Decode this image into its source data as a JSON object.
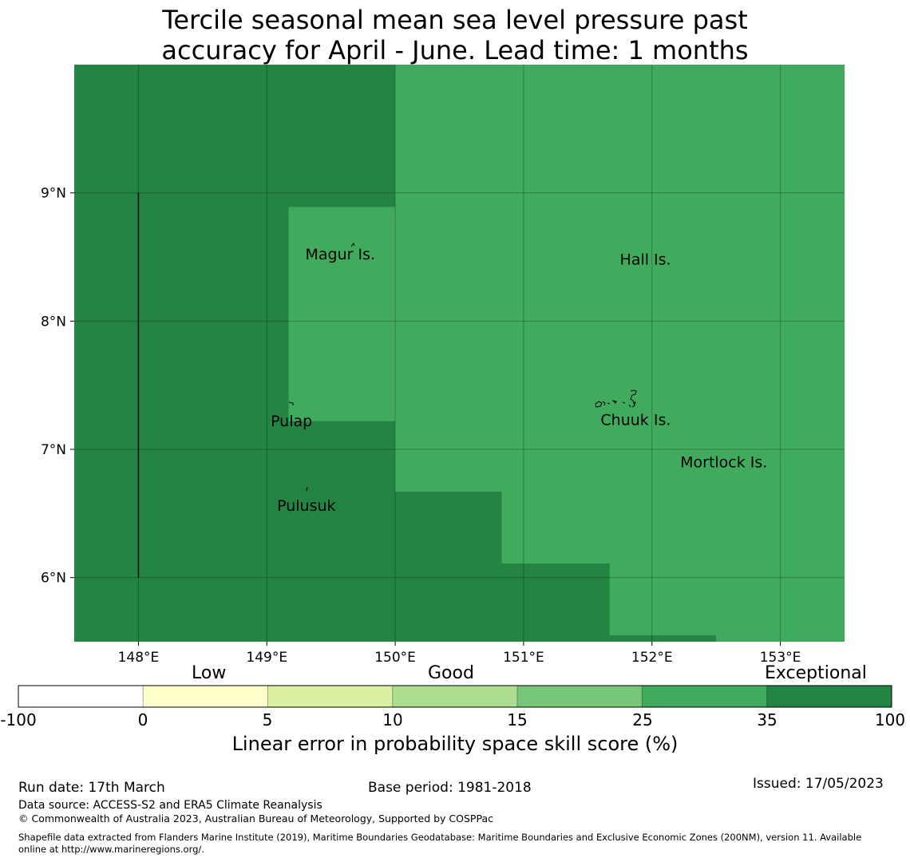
{
  "title": {
    "line1": "Tercile seasonal mean sea level pressure past",
    "line2": "accuracy for April - June. Lead time: 1 months"
  },
  "map": {
    "lon_range": [
      147.5,
      153.5
    ],
    "lat_range": [
      5.5,
      10.0
    ],
    "lon_ticks": [
      148,
      149,
      150,
      151,
      152,
      153
    ],
    "lon_tick_labels": [
      "148°E",
      "149°E",
      "150°E",
      "151°E",
      "152°E",
      "153°E"
    ],
    "lat_ticks": [
      9,
      8,
      7,
      6
    ],
    "lat_tick_labels": [
      "9°N",
      "8°N",
      "7°N",
      "6°N"
    ],
    "skill_regions": [
      {
        "category": "exceptional",
        "lon": [
          147.5,
          150.0
        ],
        "lat": [
          5.5,
          10.0
        ]
      },
      {
        "category": "high",
        "lon": [
          150.0,
          153.5
        ],
        "lat": [
          5.5,
          10.0
        ]
      },
      {
        "category": "high",
        "lon": [
          149.17,
          150.0
        ],
        "lat": [
          7.22,
          8.89
        ]
      },
      {
        "category": "exceptional",
        "lon": [
          150.0,
          150.83
        ],
        "lat": [
          5.5,
          6.67
        ]
      },
      {
        "category": "exceptional",
        "lon": [
          150.83,
          151.67
        ],
        "lat": [
          5.5,
          6.11
        ]
      },
      {
        "category": "exceptional",
        "lon": [
          151.67,
          152.5
        ],
        "lat": [
          5.5,
          5.55
        ]
      }
    ],
    "boundary_line": {
      "lon": 148.0,
      "lat": [
        6.0,
        9.0
      ]
    },
    "places": [
      {
        "name": "Magur Is.",
        "lon": 149.3,
        "lat": 8.48
      },
      {
        "name": "Hall Is.",
        "lon": 151.75,
        "lat": 8.44
      },
      {
        "name": "Pulap",
        "lon": 149.03,
        "lat": 7.18
      },
      {
        "name": "Chuuk Is.",
        "lon": 151.6,
        "lat": 7.19
      },
      {
        "name": "Mortlock Is.",
        "lon": 152.22,
        "lat": 6.86
      },
      {
        "name": "Pulusuk",
        "lon": 149.08,
        "lat": 6.52
      }
    ]
  },
  "colorbar": {
    "category_labels": [
      "Low",
      "Good",
      "Exceptional"
    ],
    "tick_labels": [
      "-100",
      "0",
      "5",
      "10",
      "15",
      "25",
      "35",
      "100"
    ],
    "colors": [
      "#ffffff",
      "#ffffcc",
      "#d9f0a3",
      "#addd8e",
      "#78c679",
      "#41ab5d",
      "#238443"
    ],
    "title": "Linear error in probability space skill score (%)"
  },
  "footer": {
    "run_date": "Run date: 17th March",
    "base_period": "Base period: 1981-2018",
    "issued": "Issued: 17/05/2023",
    "data_source": "Data source: ACCESS-S2 and ERA5 Climate Reanalysis",
    "copyright": "© Commonwealth of Australia 2023, Australian Bureau of Meteorology, Supported by COSPPac",
    "shapefile_line1": "Shapefile data extracted from Flanders Marine Institute (2019), Maritime Boundaries Geodatabase: Maritime Boundaries and Exclusive Economic Zones (200NM), version 11. Available",
    "shapefile_line2": "online at http://www.marineregions.org/."
  },
  "styles": {
    "exceptional_color": "#238443",
    "high_color": "#41ab5d"
  }
}
